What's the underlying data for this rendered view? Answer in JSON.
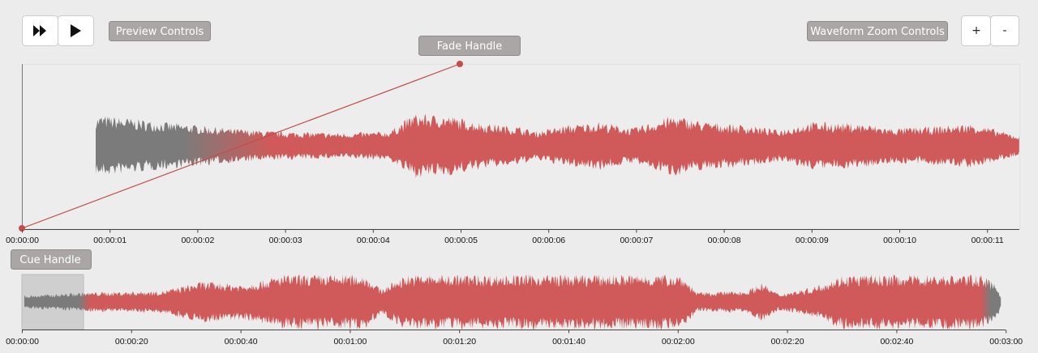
{
  "preview_controls": {
    "label": "Preview Controls"
  },
  "fade_handle": {
    "label": "Fade Handle"
  },
  "zoom_controls": {
    "label": "Waveform Zoom Controls",
    "zoom_in": "+",
    "zoom_out": "-"
  },
  "cue_handle": {
    "label": "Cue Handle"
  },
  "main_timeline": {
    "ticks": [
      "00:00:00",
      "00:00:01",
      "00:00:02",
      "00:00:03",
      "00:00:04",
      "00:00:05",
      "00:00:06",
      "00:00:07",
      "00:00:08",
      "00:00:09",
      "00:00:10",
      "00:00:11"
    ]
  },
  "overview_timeline": {
    "ticks": [
      "00:00:00",
      "00:00:20",
      "00:00:40",
      "00:01:00",
      "00:01:20",
      "00:01:40",
      "00:02:00",
      "00:02:20",
      "00:02:40",
      "00:03:00"
    ]
  }
}
